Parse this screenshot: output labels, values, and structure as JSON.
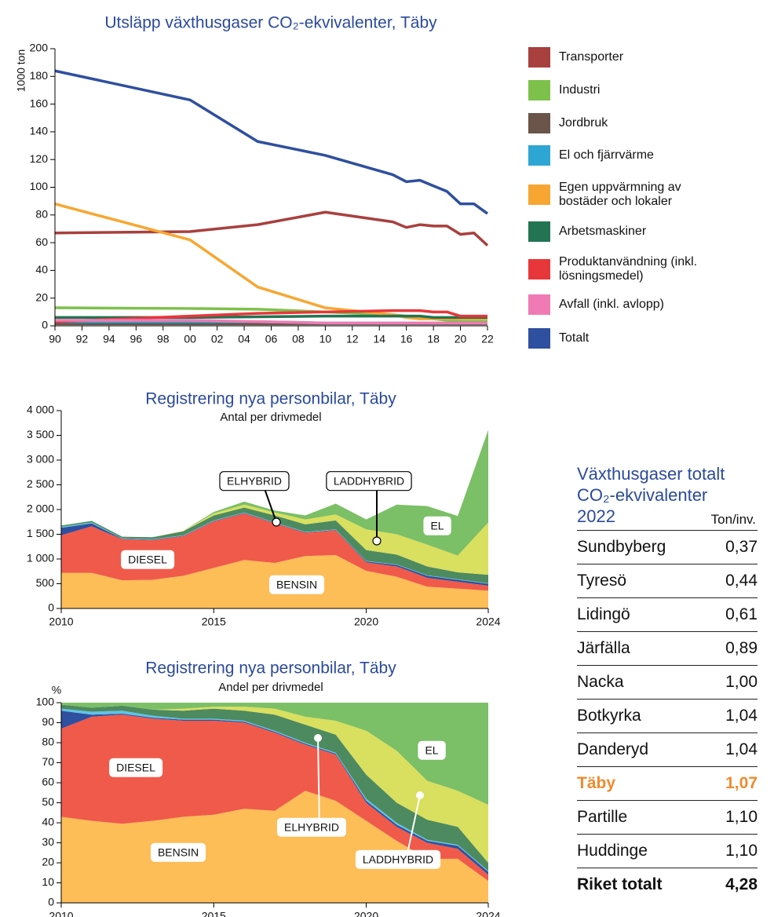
{
  "chart_data": [
    {
      "type": "line",
      "title": "Utsläpp växthusgaser CO₂-ekvivalenter, Täby",
      "ylabel": "1000 ton",
      "x": [
        1990,
        2000,
        2005,
        2010,
        2015,
        2016,
        2017,
        2018,
        2019,
        2020,
        2021,
        2022
      ],
      "xlim": [
        1990,
        2022
      ],
      "xticks": [
        {
          "value": 1990,
          "label": "90"
        },
        {
          "value": 1992,
          "label": "92"
        },
        {
          "value": 1994,
          "label": "94"
        },
        {
          "value": 1996,
          "label": "96"
        },
        {
          "value": 1998,
          "label": "98"
        },
        {
          "value": 2000,
          "label": "00"
        },
        {
          "value": 2002,
          "label": "02"
        },
        {
          "value": 2004,
          "label": "04"
        },
        {
          "value": 2006,
          "label": "06"
        },
        {
          "value": 2008,
          "label": "08"
        },
        {
          "value": 2010,
          "label": "10"
        },
        {
          "value": 2012,
          "label": "12"
        },
        {
          "value": 2014,
          "label": "14"
        },
        {
          "value": 2016,
          "label": "16"
        },
        {
          "value": 2018,
          "label": "18"
        },
        {
          "value": 2020,
          "label": "20"
        },
        {
          "value": 2022,
          "label": "22"
        }
      ],
      "ylim": [
        0,
        200
      ],
      "yticks": [
        0,
        20,
        40,
        60,
        80,
        100,
        120,
        140,
        160,
        180,
        200
      ],
      "series": [
        {
          "name": "Transporter",
          "color": "#a8403e",
          "values": [
            67,
            68,
            73,
            82,
            75,
            71,
            73,
            72,
            72,
            66,
            67,
            58
          ]
        },
        {
          "name": "Industri",
          "color": "#7dc14b",
          "values": [
            13,
            12.5,
            12,
            10,
            8,
            7,
            7,
            5,
            4,
            3,
            3,
            3
          ]
        },
        {
          "name": "Jordbruk",
          "color": "#6b5449",
          "values": [
            1.5,
            1.5,
            1.5,
            1.5,
            1.5,
            1.5,
            1.5,
            1.5,
            1.5,
            1.5,
            1.5,
            1.5
          ]
        },
        {
          "name": "El och fjärrvärme",
          "color": "#2ea6d3",
          "values": [
            3,
            3,
            3,
            2,
            2,
            2,
            2,
            2,
            2,
            2,
            2,
            2
          ]
        },
        {
          "name": "Egen uppvärmning av bostäder och lokaler",
          "color": "#f7a731",
          "values": [
            88,
            62,
            28,
            13,
            8,
            6,
            5,
            5,
            5,
            5,
            5,
            5
          ]
        },
        {
          "name": "Arbetsmaskiner",
          "color": "#237453",
          "values": [
            6,
            6,
            6.5,
            7,
            7,
            7,
            7,
            6,
            6,
            6,
            6,
            6
          ]
        },
        {
          "name": "Produktanvändning (inkl. lösningsmedel)",
          "color": "#e8373a",
          "values": [
            3,
            7,
            9,
            10,
            11,
            11,
            11,
            10,
            10,
            7,
            7,
            7
          ]
        },
        {
          "name": "Avfall (inkl. avlopp)",
          "color": "#f07ab3",
          "values": [
            4,
            4,
            3,
            2,
            2,
            2,
            2,
            2,
            2,
            2,
            2,
            2
          ]
        },
        {
          "name": "Totalt",
          "color": "#2f4f9f",
          "values": [
            184,
            163,
            133,
            123,
            109,
            104,
            105,
            101,
            97,
            88,
            88,
            81
          ]
        }
      ]
    },
    {
      "type": "area",
      "stacked": true,
      "title": "Registrering nya personbilar, Täby",
      "subtitle": "Antal per drivmedel",
      "x": [
        2010,
        2011,
        2012,
        2013,
        2014,
        2015,
        2016,
        2017,
        2018,
        2019,
        2020,
        2021,
        2022,
        2023,
        2024
      ],
      "xlim": [
        2010,
        2024
      ],
      "xticks": [
        2010,
        2015,
        2020,
        2024
      ],
      "ylim": [
        0,
        4000
      ],
      "yticks": [
        0,
        500,
        {
          "value": 1000,
          "label": "1 000"
        },
        {
          "value": 1500,
          "label": "1 500"
        },
        {
          "value": 2000,
          "label": "2 000"
        },
        {
          "value": 2500,
          "label": "2 500"
        },
        {
          "value": 3000,
          "label": "3 000"
        },
        {
          "value": 3500,
          "label": "3 500"
        },
        {
          "value": 4000,
          "label": "4 000"
        }
      ],
      "series": [
        {
          "name": "BENSIN",
          "color": "#fdbd57",
          "values": [
            720,
            720,
            570,
            580,
            660,
            820,
            980,
            920,
            1060,
            1080,
            760,
            640,
            440,
            400,
            360
          ]
        },
        {
          "name": "DIESEL",
          "color": "#f05a4a",
          "values": [
            760,
            940,
            830,
            800,
            800,
            940,
            940,
            800,
            470,
            500,
            170,
            210,
            180,
            140,
            100
          ]
        },
        {
          "color": "#2f4f9f",
          "values": [
            150,
            60,
            10,
            10,
            10,
            10,
            10,
            10,
            10,
            10,
            20,
            30,
            40,
            40,
            40
          ]
        },
        {
          "color": "#5fc3e8",
          "values": [
            20,
            20,
            10,
            10,
            10,
            10,
            10,
            10,
            10,
            10,
            10,
            10,
            10,
            10,
            10
          ]
        },
        {
          "name": "ELHYBRID",
          "color": "#4d8a5f",
          "values": [
            20,
            30,
            30,
            40,
            80,
            100,
            100,
            140,
            150,
            180,
            220,
            200,
            180,
            140,
            170
          ]
        },
        {
          "name": "LADDHYBRID",
          "color": "#d9df5e",
          "values": [
            0,
            0,
            0,
            0,
            10,
            40,
            60,
            60,
            100,
            120,
            420,
            410,
            440,
            340,
            1060
          ]
        },
        {
          "name": "EL",
          "color": "#7bbf66",
          "values": [
            10,
            0,
            0,
            0,
            0,
            30,
            60,
            40,
            80,
            220,
            200,
            600,
            780,
            800,
            1870
          ]
        }
      ]
    },
    {
      "type": "area",
      "stacked": true,
      "title": "Registrering nya personbilar, Täby",
      "subtitle": "Andel per drivmedel",
      "ylabel": "%",
      "x": [
        2010,
        2011,
        2012,
        2013,
        2014,
        2015,
        2016,
        2017,
        2018,
        2019,
        2020,
        2021,
        2022,
        2023,
        2024
      ],
      "xlim": [
        2010,
        2024
      ],
      "xticks": [
        2010,
        2015,
        2020,
        2024
      ],
      "ylim": [
        0,
        100
      ],
      "yticks": [
        0,
        10,
        20,
        30,
        40,
        50,
        60,
        70,
        80,
        90,
        100
      ],
      "series": [
        {
          "name": "BENSIN",
          "color": "#fdbd57",
          "values": [
            43,
            41,
            39.5,
            41,
            43,
            44,
            47,
            46,
            56,
            51,
            41,
            31,
            22,
            22,
            11
          ]
        },
        {
          "name": "DIESEL",
          "color": "#f05a4a",
          "values": [
            44,
            52,
            54.5,
            51,
            48,
            47,
            43,
            39,
            23,
            23,
            9,
            7,
            8,
            5,
            3
          ]
        },
        {
          "color": "#2f4f9f",
          "values": [
            9,
            1,
            0.5,
            0.5,
            0.5,
            0.5,
            0.5,
            0.5,
            0.5,
            0.5,
            1,
            1,
            1,
            1.5,
            1.5
          ]
        },
        {
          "color": "#5fc3e8",
          "values": [
            1,
            1.5,
            1.5,
            1,
            0.5,
            0.5,
            0.5,
            0.5,
            0.5,
            0.5,
            1,
            1,
            0.5,
            0.5,
            0.5
          ]
        },
        {
          "name": "ELHYBRID",
          "color": "#4d8a5f",
          "values": [
            2,
            2,
            2.5,
            3,
            4,
            5,
            5,
            8,
            9,
            9,
            12,
            10,
            10,
            9,
            4
          ]
        },
        {
          "name": "LADDHYBRID",
          "color": "#d9df5e",
          "values": [
            0,
            0,
            0,
            0,
            1,
            1,
            2,
            3,
            4,
            7,
            22,
            26,
            19.5,
            18,
            29
          ]
        },
        {
          "name": "EL",
          "color": "#7bbf66",
          "values": [
            1,
            2.5,
            1.5,
            3.5,
            3,
            2,
            2,
            3,
            7,
            9,
            14,
            24,
            39,
            44,
            51
          ]
        }
      ]
    }
  ],
  "table": {
    "title": [
      "Växthusgaser totalt",
      "CO₂-ekvivalenter",
      "2022"
    ],
    "column_header": "Ton/inv.",
    "highlight_row": 7,
    "highlight_color": "#ef8a2e",
    "rows": [
      [
        "Sundbyberg",
        "0,37"
      ],
      [
        "Tyresö",
        "0,44"
      ],
      [
        "Lidingö",
        "0,61"
      ],
      [
        "Järfälla",
        "0,89"
      ],
      [
        "Nacka",
        "1,00"
      ],
      [
        "Botkyrka",
        "1,04"
      ],
      [
        "Danderyd",
        "1,04"
      ],
      [
        "Täby",
        "1,07"
      ],
      [
        "Partille",
        "1,10"
      ],
      [
        "Huddinge",
        "1,10"
      ],
      [
        "Riket totalt",
        "4,28"
      ]
    ]
  }
}
